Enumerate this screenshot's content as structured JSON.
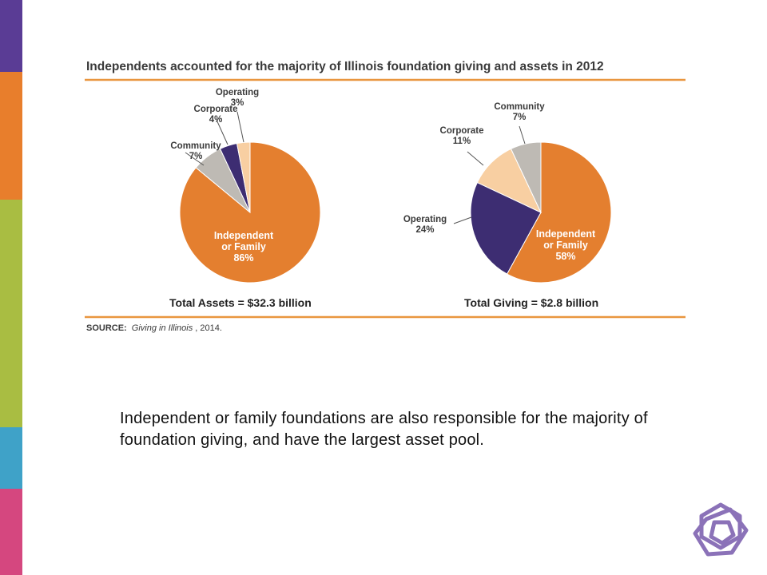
{
  "colors": {
    "orange": "#E47F2F",
    "purple": "#3D2D72",
    "gray": "#BEBAB4",
    "peach": "#F8CFA2",
    "rule": "#E9963F",
    "stripes": [
      "#5A3C95",
      "#E87E2C",
      "#A9BD42",
      "#3FA2C8",
      "#D5477F"
    ]
  },
  "figure": {
    "title": "Independents accounted for the majority of Illinois foundation giving and assets in 2012",
    "source_label": "SOURCE:",
    "source_italic": "Giving in Illinois",
    "source_rest": ", 2014."
  },
  "chart_data": [
    {
      "type": "pie",
      "title": "",
      "total_label": "Total Assets = $32.3 billion",
      "slices": [
        {
          "label": "Independent or Family",
          "value": 86,
          "pct_label": "86%",
          "color": "#E47F2F"
        },
        {
          "label": "Community",
          "value": 7,
          "pct_label": "7%",
          "color": "#BEBAB4"
        },
        {
          "label": "Corporate",
          "value": 4,
          "pct_label": "4%",
          "color": "#3D2D72"
        },
        {
          "label": "Operating",
          "value": 3,
          "pct_label": "3%",
          "color": "#F8CFA2"
        }
      ]
    },
    {
      "type": "pie",
      "title": "",
      "total_label": "Total Giving = $2.8 billion",
      "slices": [
        {
          "label": "Independent or Family",
          "value": 58,
          "pct_label": "58%",
          "color": "#E47F2F"
        },
        {
          "label": "Operating",
          "value": 24,
          "pct_label": "24%",
          "color": "#3D2D72"
        },
        {
          "label": "Corporate",
          "value": 11,
          "pct_label": "11%",
          "color": "#F8CFA2"
        },
        {
          "label": "Community",
          "value": 7,
          "pct_label": "7%",
          "color": "#BEBAB4"
        }
      ]
    }
  ],
  "caption": "Independent or family foundations are also responsible for the majority of foundation giving, and have the largest asset pool."
}
